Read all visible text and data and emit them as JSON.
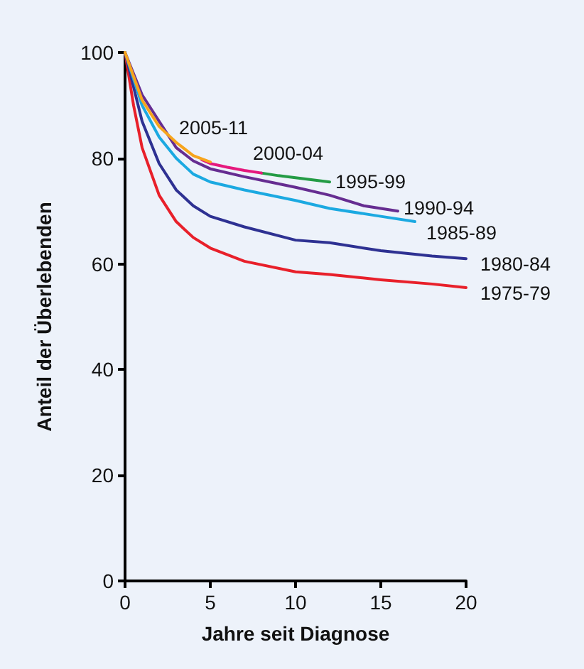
{
  "chart_data": {
    "type": "line",
    "xlabel": "Jahre seit Diagnose",
    "ylabel": "Anteil der Überlebenden",
    "xlim": [
      0,
      20
    ],
    "xticks": [
      0,
      5,
      10,
      15,
      20
    ],
    "ylim": [
      0,
      100
    ],
    "yticks": [
      0,
      20,
      40,
      60,
      80,
      100
    ],
    "grid": false,
    "marker": "none",
    "line_style": "solid",
    "series": [
      {
        "name": "1975-79",
        "color": "#e8202a",
        "x": [
          0,
          0.5,
          1,
          2,
          3,
          4,
          5,
          7,
          10,
          12,
          15,
          18,
          20
        ],
        "values": [
          100,
          90,
          82,
          73,
          68,
          65,
          63,
          60.5,
          58.5,
          58,
          57,
          56.2,
          55.5
        ]
      },
      {
        "name": "1980-84",
        "color": "#2e3192",
        "x": [
          0,
          1,
          2,
          3,
          4,
          5,
          7,
          10,
          12,
          15,
          18,
          20
        ],
        "values": [
          100,
          87,
          79,
          74,
          71,
          69,
          67,
          64.5,
          64,
          62.5,
          61.5,
          61
        ]
      },
      {
        "name": "1985-89",
        "color": "#1ba9e1",
        "x": [
          0,
          1,
          2,
          3,
          4,
          5,
          7,
          10,
          12,
          15,
          17
        ],
        "values": [
          100,
          90,
          84,
          80,
          77,
          75.5,
          74,
          72,
          70.5,
          69,
          68
        ]
      },
      {
        "name": "1990-94",
        "color": "#662d91",
        "x": [
          0,
          1,
          2,
          3,
          4,
          5,
          7,
          10,
          12,
          14,
          16
        ],
        "values": [
          100,
          92,
          87,
          82,
          79.5,
          78,
          76.5,
          74.5,
          73,
          71,
          70
        ]
      },
      {
        "name": "1995-99",
        "color": "#239b45",
        "x": [
          8,
          9,
          10,
          11,
          12
        ],
        "values": [
          77.2,
          76.7,
          76.3,
          75.9,
          75.5
        ]
      },
      {
        "name": "2000-04",
        "color": "#e5197d",
        "x": [
          4.5,
          5,
          6,
          7,
          8
        ],
        "values": [
          79.7,
          79,
          78.3,
          77.7,
          77.2
        ]
      },
      {
        "name": "2005-11",
        "color": "#f7a51c",
        "x": [
          0,
          1,
          2,
          3,
          4,
          5
        ],
        "values": [
          100,
          91,
          86,
          83,
          80.5,
          79.3
        ]
      }
    ]
  }
}
